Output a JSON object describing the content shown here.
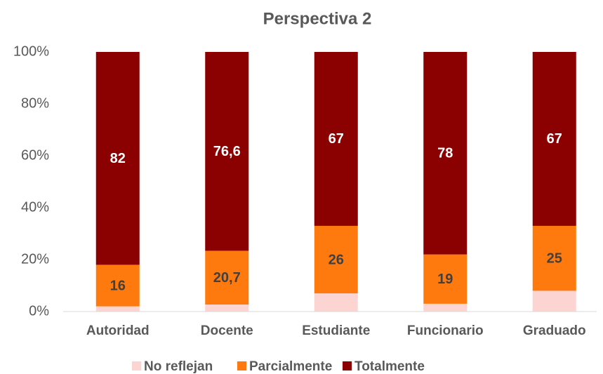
{
  "chart_data": {
    "type": "stacked_bar",
    "title": "Perspectiva 2",
    "categories": [
      "Autoridad",
      "Docente",
      "Estudiante",
      "Funcionario",
      "Graduado"
    ],
    "series": [
      {
        "name": "No reflejan",
        "color": "#fcd5d3",
        "values": [
          2,
          2.7,
          7,
          3,
          8
        ]
      },
      {
        "name": "Parcialmente",
        "color": "#ff7a0e",
        "values": [
          16,
          20.7,
          26,
          19,
          25
        ],
        "value_labels": [
          "16",
          "20,7",
          "26",
          "19",
          "25"
        ],
        "label_color": "#404040"
      },
      {
        "name": "Totalmente",
        "color": "#8b0000",
        "values": [
          82,
          76.6,
          67,
          78,
          67
        ],
        "value_labels": [
          "82",
          "76,6",
          "67",
          "78",
          "67"
        ],
        "label_color": "#ffffff"
      }
    ],
    "ylim": [
      0,
      100
    ],
    "yticks": [
      {
        "value": 0,
        "label": "0%"
      },
      {
        "value": 20,
        "label": "20%"
      },
      {
        "value": 40,
        "label": "40%"
      },
      {
        "value": 60,
        "label": "60%"
      },
      {
        "value": 80,
        "label": "80%"
      },
      {
        "value": 100,
        "label": "100%"
      }
    ],
    "grid": false,
    "legend": "bottom"
  }
}
